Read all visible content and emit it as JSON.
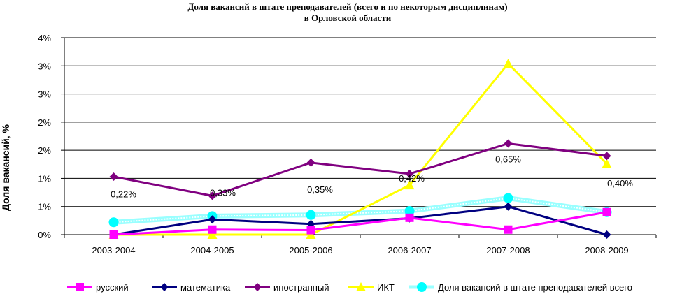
{
  "chart_data": {
    "type": "line",
    "title": [
      "Доля вакансий в штате преподавателей (всего и по некоторым дисциплинам)",
      "в Орловской области"
    ],
    "ylabel": "Доля вакансий, %",
    "xlabel": "",
    "categories": [
      "2003-2004",
      "2004-2005",
      "2005-2006",
      "2006-2007",
      "2007-2008",
      "2008-2009"
    ],
    "y_ticks": [
      "0%",
      "1%",
      "1%",
      "2%",
      "2%",
      "3%",
      "3%",
      "4%"
    ],
    "ylim": [
      0,
      3.5
    ],
    "grid": true,
    "legend_position": "bottom",
    "series": [
      {
        "name": "русский",
        "color": "#ff00ff",
        "marker": "square",
        "values": [
          0.0,
          0.09,
          0.08,
          0.3,
          0.09,
          0.4
        ]
      },
      {
        "name": "математика",
        "color": "#000080",
        "marker": "diamond",
        "values": [
          0.0,
          0.27,
          0.19,
          0.29,
          0.5,
          0.0
        ]
      },
      {
        "name": "иностранный",
        "color": "#800080",
        "marker": "diamond",
        "values": [
          1.03,
          0.69,
          1.28,
          1.08,
          1.62,
          1.4
        ]
      },
      {
        "name": "ИКТ",
        "color": "#ffff00",
        "marker": "triangle",
        "values": [
          0.0,
          0.0,
          0.0,
          0.88,
          3.04,
          1.26
        ]
      },
      {
        "name": "Доля вакансий в штате преподавателей всего",
        "color": "#00ffff",
        "marker": "circle",
        "values": [
          0.22,
          0.33,
          0.35,
          0.42,
          0.65,
          0.4
        ],
        "data_labels": [
          "0,22%",
          "0,33%",
          "0,35%",
          "0,42%",
          "0,65%",
          "0,40%"
        ]
      }
    ]
  }
}
